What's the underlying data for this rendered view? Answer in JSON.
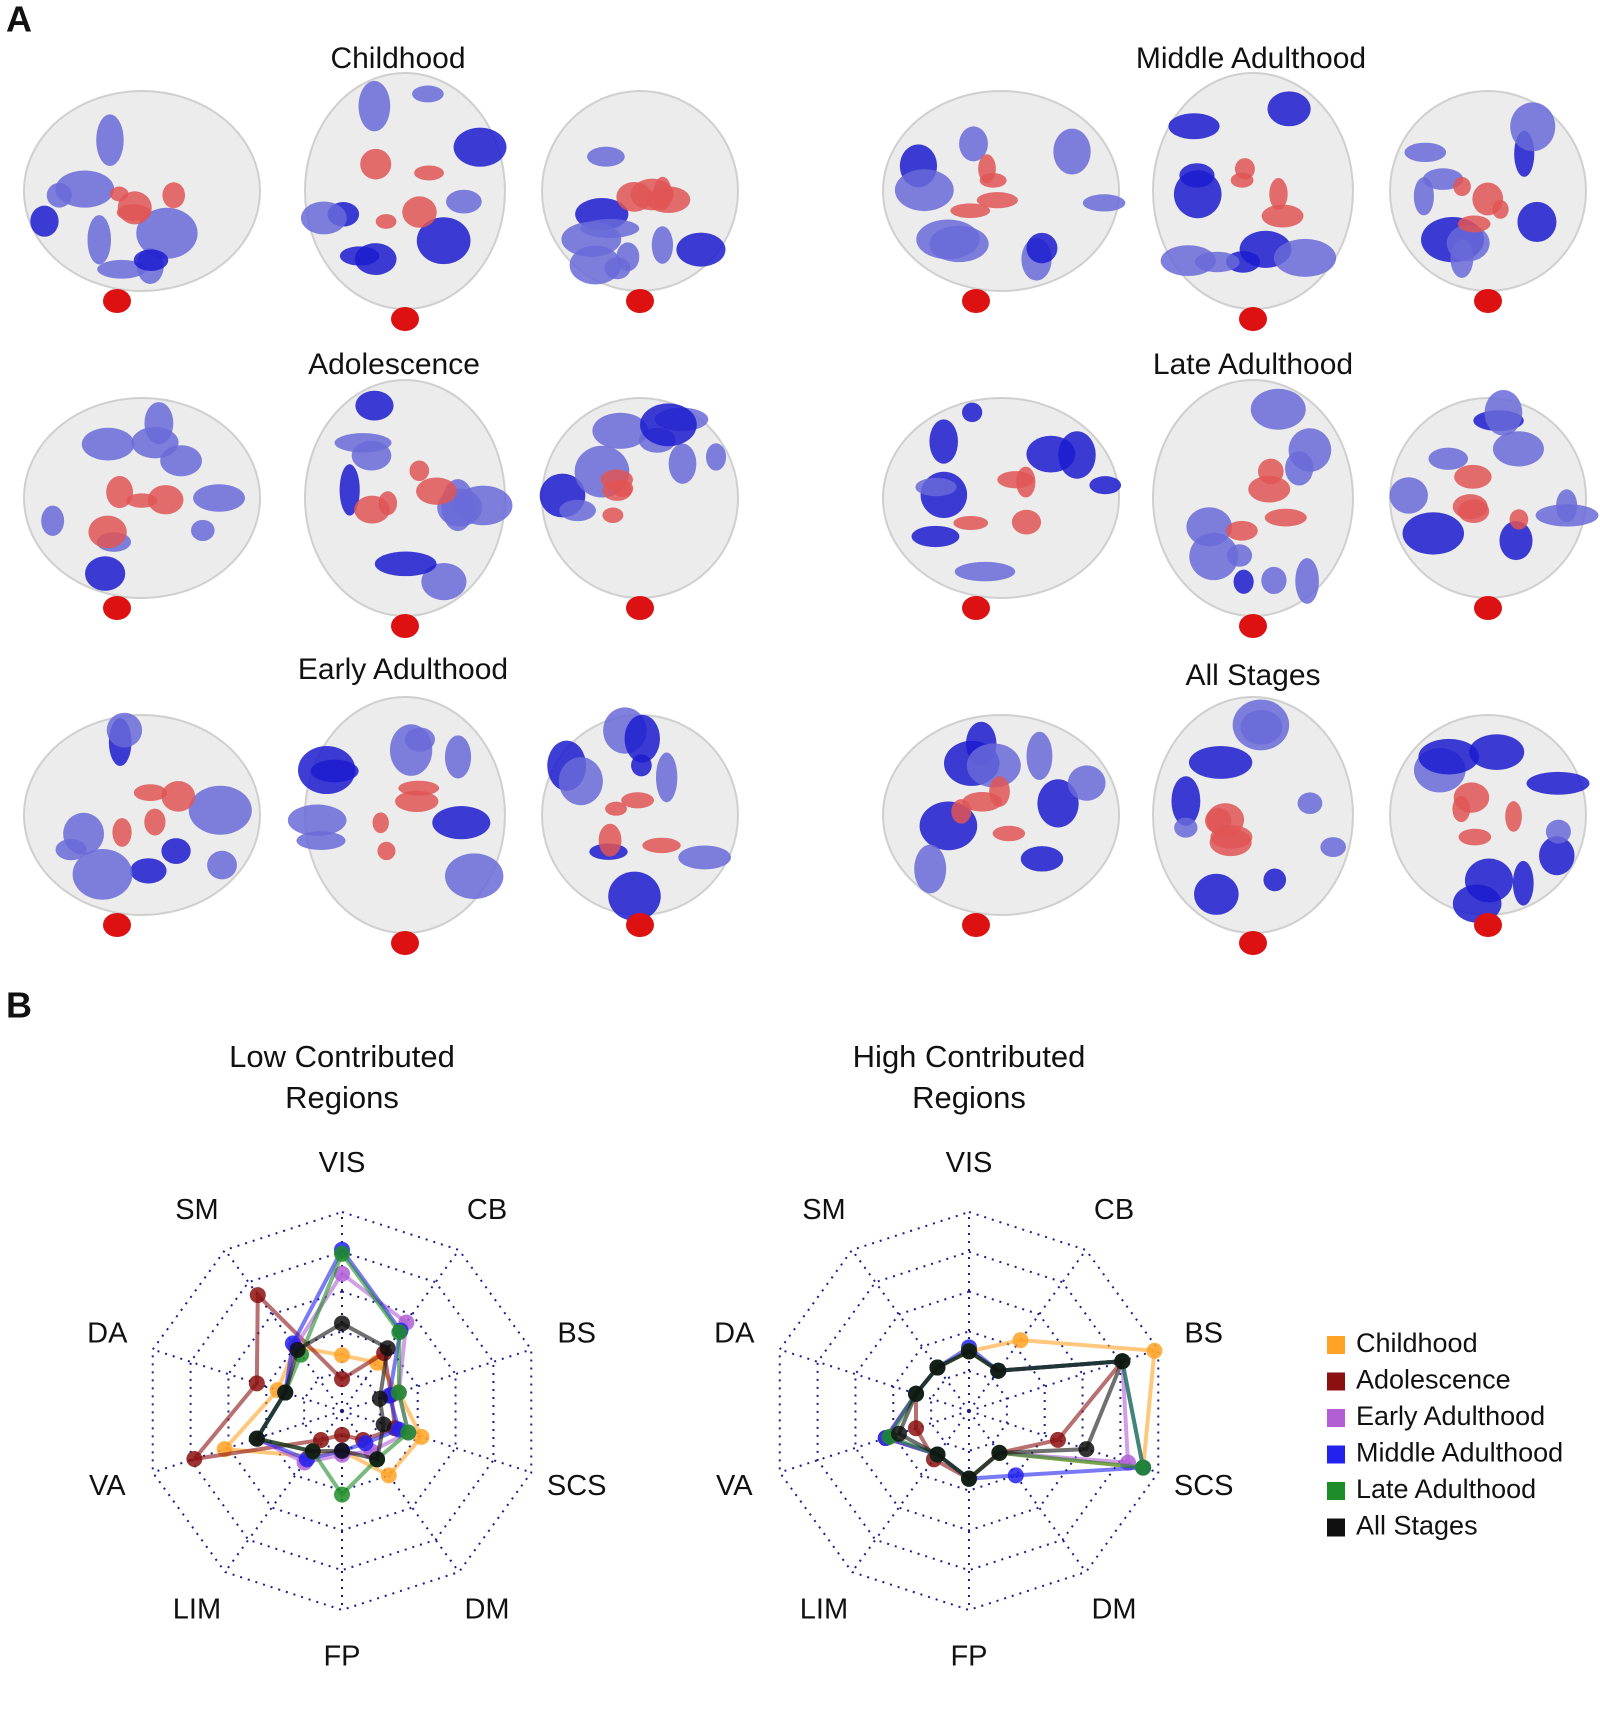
{
  "panels": {
    "a": {
      "label": "A",
      "stages": [
        "Childhood",
        "Middle Adulthood",
        "Adolescence",
        "Late Adulthood",
        "Early Adulthood",
        "All Stages"
      ]
    },
    "b": {
      "label": "B"
    }
  },
  "chart_data": [
    {
      "type": "radar",
      "title": "Low Contributed Regions",
      "categories": [
        "VIS",
        "CB",
        "BS",
        "SCS",
        "DM",
        "FP",
        "LIM",
        "VA",
        "DA",
        "SM"
      ],
      "rlim": [
        0,
        1
      ],
      "rticks": [
        0.2,
        0.4,
        0.6,
        0.8,
        1
      ],
      "grid": true,
      "series": [
        {
          "color": "#ffa326",
          "values": [
            0.28,
            0.3,
            0.3,
            0.42,
            0.4,
            0.2,
            0.28,
            0.62,
            0.34,
            0.4
          ]
        },
        {
          "color": "#8b1010",
          "values": [
            0.16,
            0.36,
            0.26,
            0.28,
            0.18,
            0.12,
            0.18,
            0.78,
            0.45,
            0.72
          ]
        },
        {
          "color": "#b25fd6",
          "values": [
            0.69,
            0.55,
            0.3,
            0.35,
            0.25,
            0.22,
            0.32,
            0.45,
            0.3,
            0.4
          ]
        },
        {
          "color": "#2222ee",
          "values": [
            0.81,
            0.5,
            0.25,
            0.3,
            0.2,
            0.2,
            0.3,
            0.45,
            0.3,
            0.42
          ]
        },
        {
          "color": "#1e8c28",
          "values": [
            0.79,
            0.49,
            0.3,
            0.35,
            0.3,
            0.42,
            0.25,
            0.45,
            0.3,
            0.35
          ]
        },
        {
          "color": "#101010",
          "values": [
            0.44,
            0.39,
            0.2,
            0.22,
            0.3,
            0.2,
            0.25,
            0.45,
            0.3,
            0.38
          ]
        }
      ]
    },
    {
      "type": "radar",
      "title": "High Contributed Regions",
      "categories": [
        "VIS",
        "CB",
        "BS",
        "SCS",
        "DM",
        "FP",
        "LIM",
        "VA",
        "DA",
        "SM"
      ],
      "rlim": [
        0,
        1
      ],
      "rticks": [
        0.2,
        0.4,
        0.6,
        0.8,
        1
      ],
      "grid": true,
      "legend": "right",
      "series": [
        {
          "name": "Childhood",
          "color": "#ffa326",
          "values": [
            0.3,
            0.44,
            0.98,
            0.92,
            0.26,
            0.34,
            0.27,
            0.44,
            0.28,
            0.27
          ]
        },
        {
          "name": "Adolescence",
          "color": "#8b1010",
          "values": [
            0.3,
            0.25,
            0.81,
            0.47,
            0.26,
            0.34,
            0.3,
            0.28,
            0.28,
            0.27
          ]
        },
        {
          "name": "Early Adulthood",
          "color": "#b25fd6",
          "values": [
            0.3,
            0.25,
            0.81,
            0.84,
            0.26,
            0.34,
            0.27,
            0.44,
            0.28,
            0.27
          ]
        },
        {
          "name": "Middle Adulthood",
          "color": "#2222ee",
          "values": [
            0.32,
            0.25,
            0.81,
            0.92,
            0.4,
            0.34,
            0.27,
            0.44,
            0.28,
            0.27
          ]
        },
        {
          "name": "Late Adulthood",
          "color": "#1e8c28",
          "values": [
            0.3,
            0.25,
            0.81,
            0.92,
            0.26,
            0.34,
            0.27,
            0.42,
            0.28,
            0.27
          ]
        },
        {
          "name": "All Stages",
          "color": "#101010",
          "values": [
            0.3,
            0.25,
            0.81,
            0.62,
            0.26,
            0.34,
            0.27,
            0.37,
            0.28,
            0.27
          ]
        }
      ]
    }
  ]
}
